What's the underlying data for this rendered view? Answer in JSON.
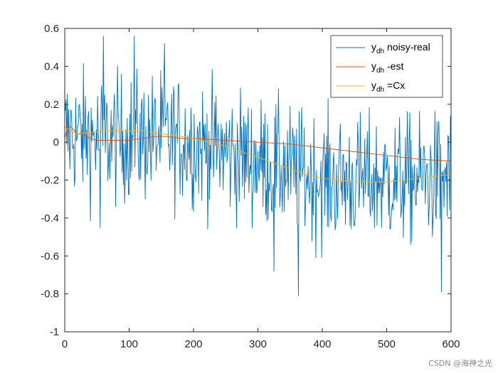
{
  "chart_data": {
    "type": "line",
    "title": "",
    "xlabel": "",
    "ylabel": "",
    "xlim": [
      0,
      600
    ],
    "ylim": [
      -1,
      0.6
    ],
    "xticks": [
      0,
      100,
      200,
      300,
      400,
      500,
      600
    ],
    "yticks": [
      -1,
      -0.8,
      -0.6,
      -0.4,
      -0.2,
      0,
      0.2,
      0.4,
      0.6
    ],
    "xtick_labels": [
      "0",
      "100",
      "200",
      "300",
      "400",
      "500",
      "600"
    ],
    "ytick_labels": [
      "-1",
      "-0.8",
      "-0.6",
      "-0.4",
      "-0.2",
      "0",
      "0.2",
      "0.4",
      "0.6"
    ],
    "grid": false,
    "legend_position": "top-right",
    "series": [
      {
        "name": "y_dh noisy-real",
        "legend_main": "y",
        "legend_sub": "dh",
        "legend_rest": " noisy-real",
        "color": "#0072BD",
        "noise": true,
        "x": [
          0,
          50,
          100,
          150,
          200,
          250,
          300,
          350,
          400,
          450,
          500,
          550,
          600
        ],
        "values": [
          0.05,
          0.02,
          0.02,
          0.03,
          0.0,
          -0.05,
          -0.1,
          -0.15,
          -0.2,
          -0.2,
          -0.2,
          -0.2,
          -0.18
        ],
        "spread": 0.17,
        "extremes": [
          {
            "x": 60,
            "y": 0.56
          },
          {
            "x": 108,
            "y": 0.56
          },
          {
            "x": 55,
            "y": -0.45
          },
          {
            "x": 325,
            "y": -0.68
          },
          {
            "x": 363,
            "y": -0.81
          },
          {
            "x": 585,
            "y": -0.79
          },
          {
            "x": 155,
            "y": 0.52
          }
        ]
      },
      {
        "name": "y_dh -est",
        "legend_main": "y",
        "legend_sub": "dh",
        "legend_rest": " -est",
        "color": "#D95319",
        "noise": false,
        "x": [
          0,
          5,
          10,
          15,
          20,
          25,
          30,
          40,
          50,
          60,
          80,
          100,
          120,
          140,
          160,
          180,
          200,
          250,
          300,
          350,
          400,
          450,
          500,
          550,
          600
        ],
        "values": [
          0.02,
          0.09,
          0.08,
          0.06,
          0.04,
          0.05,
          0.04,
          0.02,
          0.01,
          0.01,
          0.01,
          0.01,
          0.02,
          0.03,
          0.03,
          0.02,
          0.02,
          0.01,
          0.0,
          -0.01,
          -0.03,
          -0.05,
          -0.07,
          -0.09,
          -0.1
        ]
      },
      {
        "name": "y_dh =Cx",
        "legend_main": "y",
        "legend_sub": "dh",
        "legend_rest": " =Cx",
        "color": "#EDB120",
        "noise": false,
        "x": [
          0,
          10,
          20,
          30,
          40,
          60,
          80,
          100,
          120,
          140,
          160,
          180,
          200,
          225,
          250,
          275,
          300,
          325,
          350,
          375,
          400,
          425,
          450,
          475,
          500,
          525,
          550,
          575,
          600
        ],
        "values": [
          0.08,
          0.06,
          0.04,
          0.05,
          0.05,
          0.06,
          0.06,
          0.06,
          0.06,
          0.05,
          0.04,
          0.03,
          0.02,
          0.0,
          -0.02,
          -0.05,
          -0.08,
          -0.11,
          -0.14,
          -0.17,
          -0.19,
          -0.2,
          -0.21,
          -0.21,
          -0.21,
          -0.2,
          -0.19,
          -0.18,
          -0.17
        ]
      }
    ]
  },
  "watermark": "CSDN @海神之光"
}
